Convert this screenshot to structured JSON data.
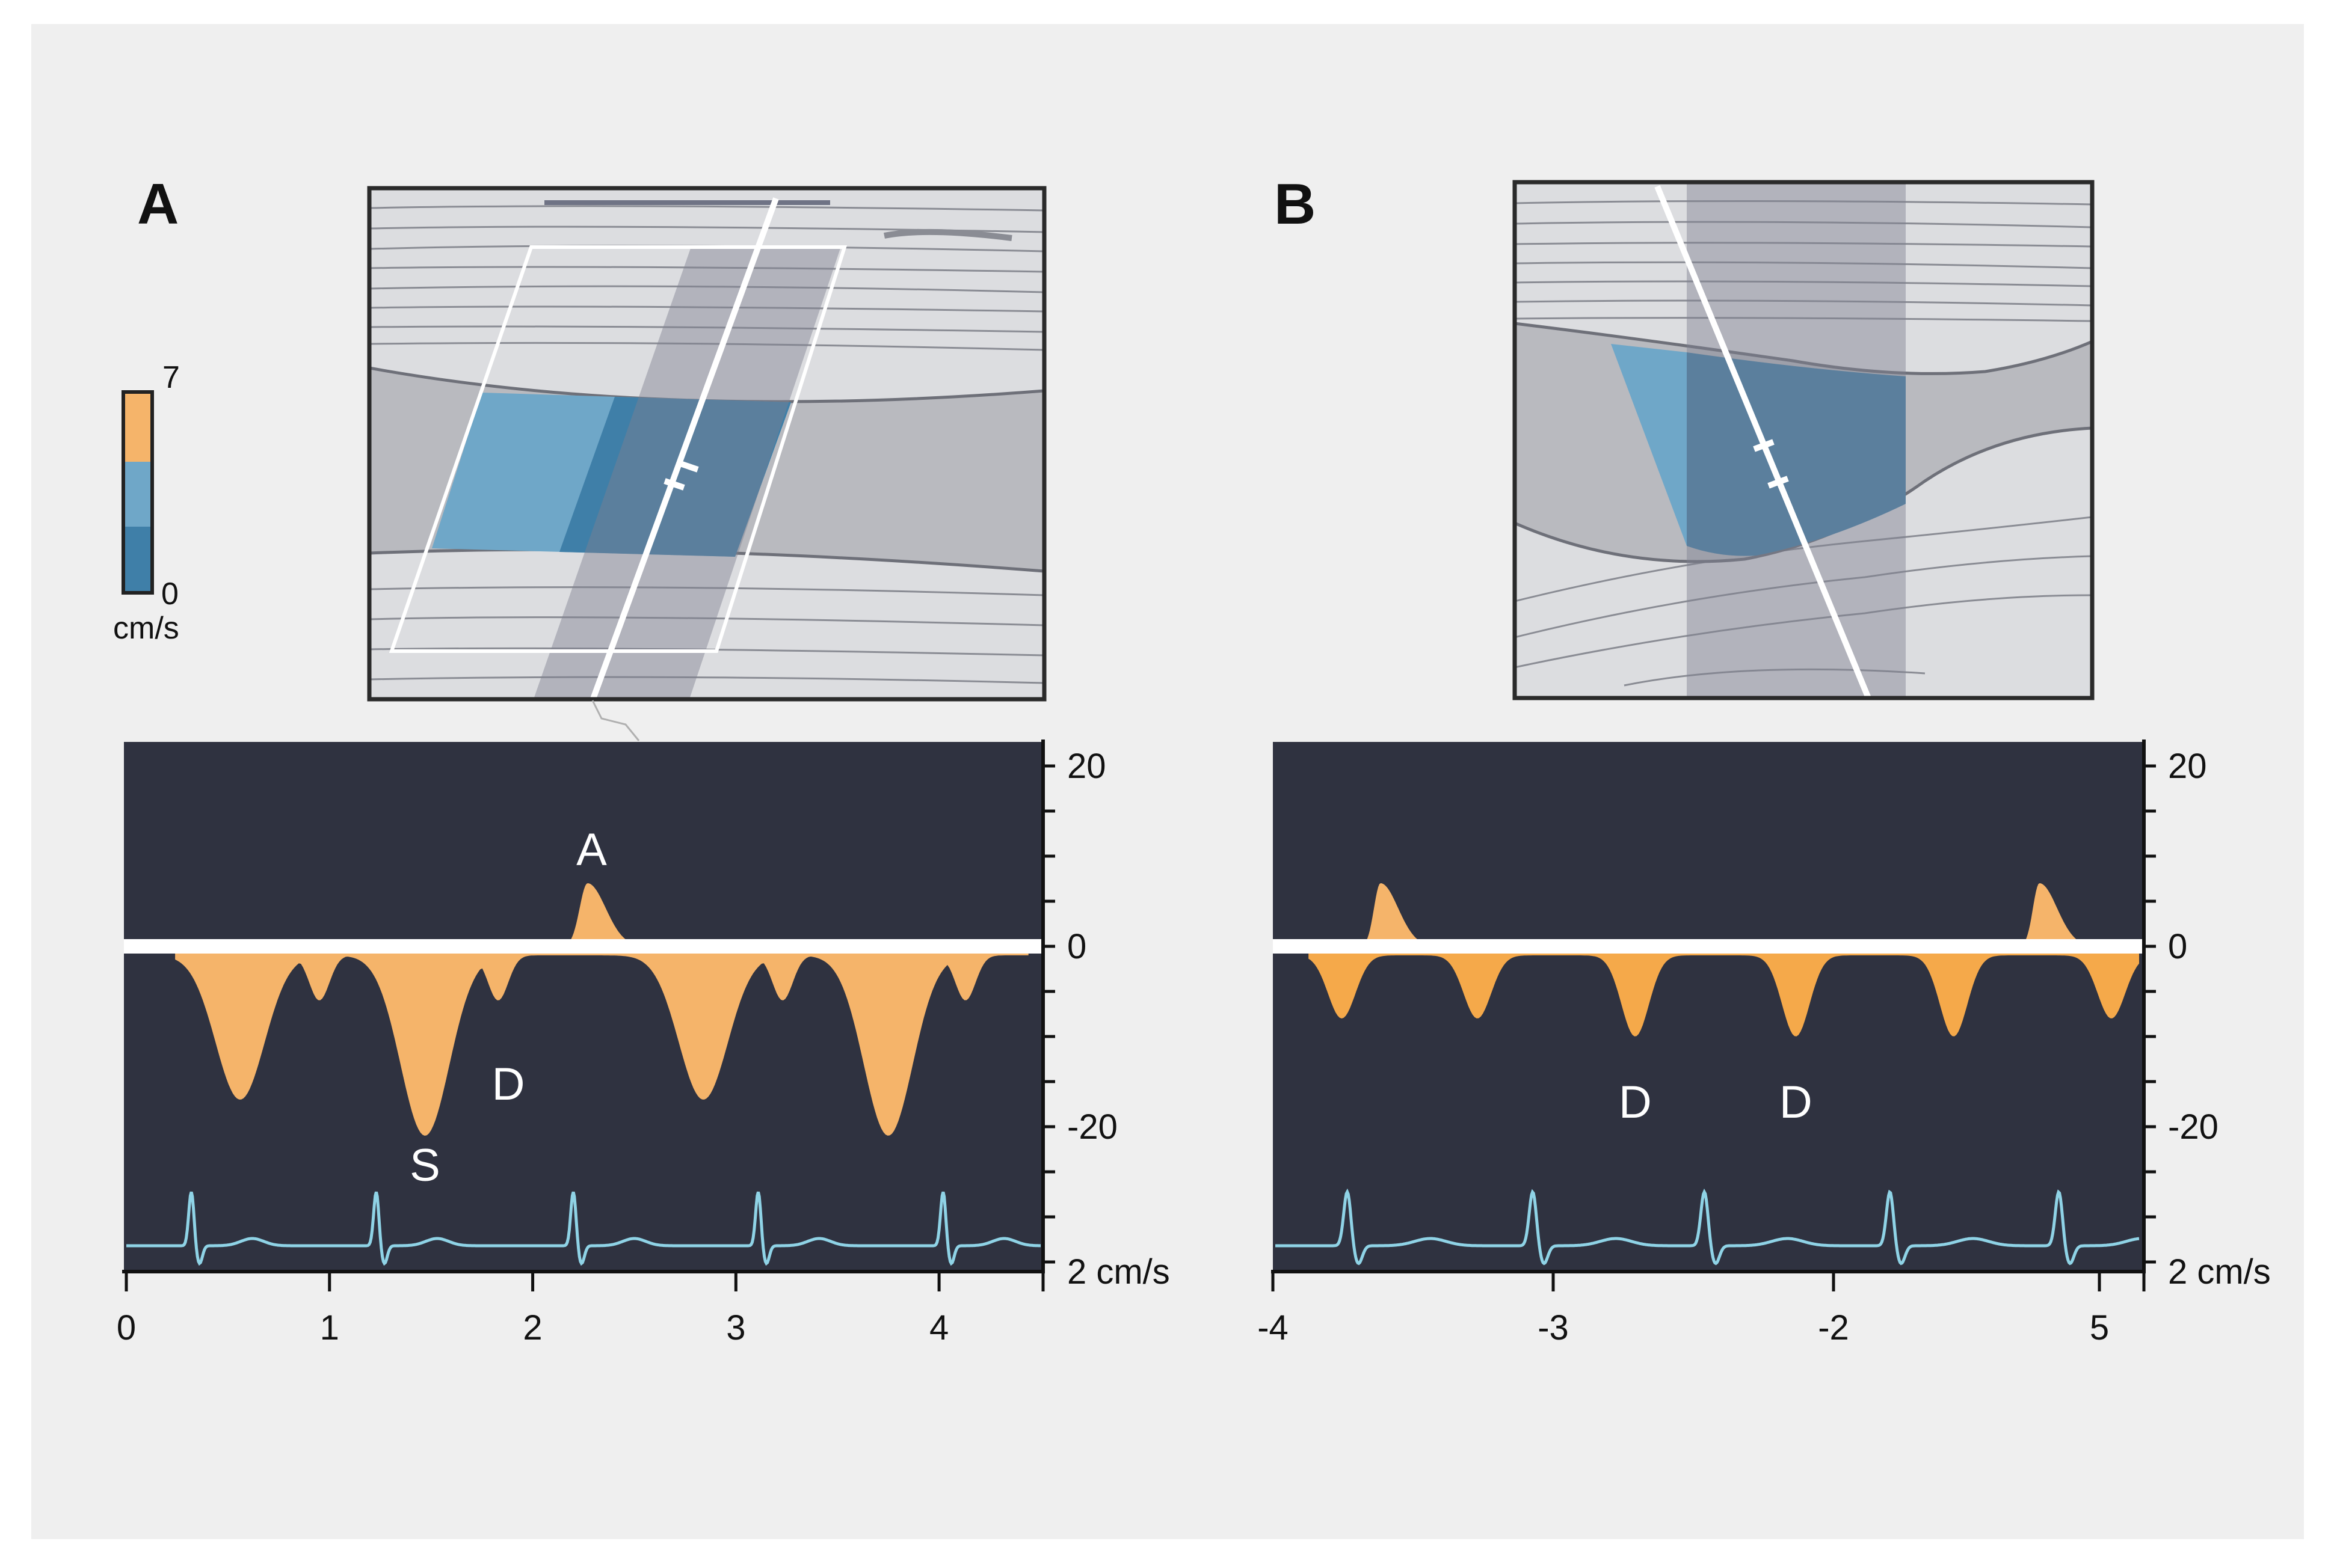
{
  "colors": {
    "background": "#efefef",
    "scan_tissue": "#d9dadd",
    "scan_vessel": "#b8b9be",
    "scan_line": "#7e8088",
    "flow_light": "#6fa7c8",
    "flow_dark": "#3f7fa8",
    "flow_orange": "#f5b46a",
    "spectrum_bg": "#2f3240",
    "baseline": "#ffffff",
    "ecg": "#8fd3e6"
  },
  "legend": {
    "max_label": "7",
    "min_label": "0",
    "unit_label": "cm/s",
    "bands": [
      "#f5b46a",
      "#6fa7c8",
      "#3f7fa8"
    ]
  },
  "panel_a": {
    "letter": "A",
    "spectrum": {
      "y_range": [
        -37,
        25
      ],
      "y_tick_labels": [
        {
          "value": 20,
          "text": "20"
        },
        {
          "value": 0,
          "text": "0"
        },
        {
          "value": -20,
          "text": "-20"
        },
        {
          "value": -37,
          "text": "2 cm/s"
        }
      ],
      "x_range": [
        0,
        4.5
      ],
      "x_ticks": [
        {
          "value": 0,
          "text": "0"
        },
        {
          "value": 1,
          "text": "1"
        },
        {
          "value": 2,
          "text": "2"
        },
        {
          "value": 3,
          "text": "3"
        },
        {
          "value": 4,
          "text": "4"
        }
      ],
      "wave_labels": [
        {
          "text": "A",
          "t": 2.29,
          "v": 9
        },
        {
          "text": "D",
          "t": 1.88,
          "v": -17
        },
        {
          "text": "S",
          "t": 1.47,
          "v": -26
        }
      ],
      "forward_peaks": [
        {
          "t": 2.27,
          "v": 7
        }
      ],
      "reverse_peaks": [
        {
          "t": 0.56,
          "v": -16
        },
        {
          "t": 0.95,
          "v": -5
        },
        {
          "t": 1.47,
          "v": -20
        },
        {
          "t": 1.83,
          "v": -5
        },
        {
          "t": 2.84,
          "v": -16
        },
        {
          "t": 3.23,
          "v": -5
        },
        {
          "t": 3.75,
          "v": -20
        },
        {
          "t": 4.13,
          "v": -5
        }
      ],
      "ecg_r_waves": [
        0.32,
        1.23,
        2.2,
        3.11,
        4.02
      ]
    }
  },
  "panel_b": {
    "letter": "B",
    "spectrum": {
      "y_range": [
        -37,
        25
      ],
      "y_tick_labels": [
        {
          "value": 20,
          "text": "20"
        },
        {
          "value": 0,
          "text": "0"
        },
        {
          "value": -20,
          "text": "-20"
        },
        {
          "value": -37,
          "text": "2 cm/s"
        }
      ],
      "x_ticks": [
        {
          "pos": 0,
          "text": "-4"
        },
        {
          "pos": 1,
          "text": "-3"
        },
        {
          "pos": 2,
          "text": "-2"
        },
        {
          "pos": 3,
          "text": "5"
        }
      ],
      "wave_labels": [
        {
          "text": "D",
          "t": 1.3,
          "v": -19
        },
        {
          "text": "D",
          "t": 1.88,
          "v": -19
        }
      ],
      "forward_peaks": [
        {
          "t": 0.38,
          "v": 7
        },
        {
          "t": 2.76,
          "v": 7
        }
      ],
      "reverse_peaks": [
        {
          "t": 0.24,
          "v": -7
        },
        {
          "t": 0.73,
          "v": -7
        },
        {
          "t": 1.3,
          "v": -9
        },
        {
          "t": 1.88,
          "v": -9
        },
        {
          "t": 2.45,
          "v": -9
        },
        {
          "t": 3.02,
          "v": -7
        }
      ],
      "ecg_r_waves": [
        0.26,
        0.93,
        1.55,
        2.22,
        2.83
      ]
    }
  }
}
